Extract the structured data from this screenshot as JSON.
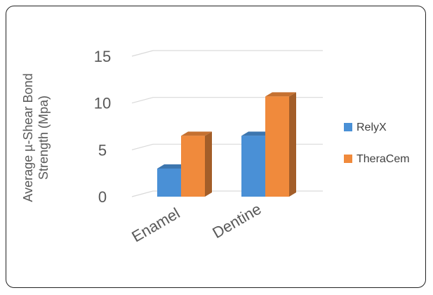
{
  "chart_data": {
    "type": "bar",
    "subtype": "3d-clustered-column",
    "categories": [
      "Enamel",
      "Dentine"
    ],
    "series": [
      {
        "name": "RelyX",
        "values": [
          3,
          6.5
        ],
        "color": "#4a90d6"
      },
      {
        "name": "TheraCem",
        "values": [
          6.5,
          10.7
        ],
        "color": "#f08a3c"
      }
    ],
    "ylabel": [
      "Average µ-Shear Bond",
      "Strength (Mpa)"
    ],
    "ylim": [
      0,
      15
    ],
    "yticks": [
      "0",
      "5",
      "10",
      "15"
    ],
    "legend_position": "right",
    "grid": true
  }
}
